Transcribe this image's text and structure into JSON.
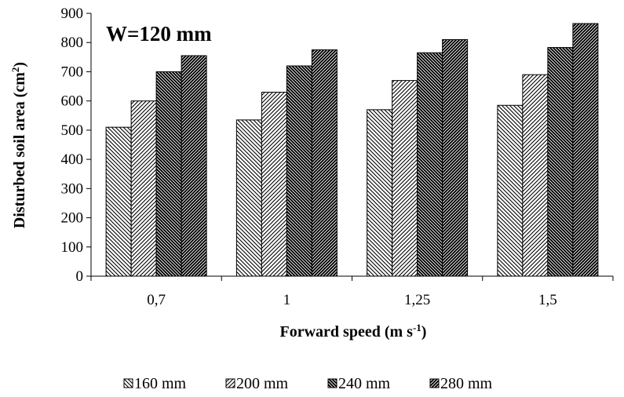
{
  "chart_data": {
    "type": "bar",
    "title": "",
    "annotation": "W=120 mm",
    "xlabel": {
      "main": "Forward speed (m s",
      "sup": "-1",
      "tail": ")"
    },
    "ylabel": {
      "main": "Disturbed soil area (cm",
      "sup": "2",
      "tail": ")"
    },
    "categories": [
      "0,7",
      "1",
      "1,25",
      "1,5"
    ],
    "ylim": [
      0,
      900
    ],
    "yticks": [
      0,
      100,
      200,
      300,
      400,
      500,
      600,
      700,
      800,
      900
    ],
    "grid": false,
    "legend_position": "bottom",
    "series": [
      {
        "name": "160 mm",
        "values": [
          510,
          535,
          570,
          585
        ],
        "pattern": "sparse-back"
      },
      {
        "name": "200 mm",
        "values": [
          600,
          630,
          670,
          690
        ],
        "pattern": "sparse-fwd"
      },
      {
        "name": "240 mm",
        "values": [
          700,
          720,
          765,
          783
        ],
        "pattern": "dense-back"
      },
      {
        "name": "280 mm",
        "values": [
          755,
          775,
          810,
          865
        ],
        "pattern": "dense-fwd"
      }
    ]
  }
}
